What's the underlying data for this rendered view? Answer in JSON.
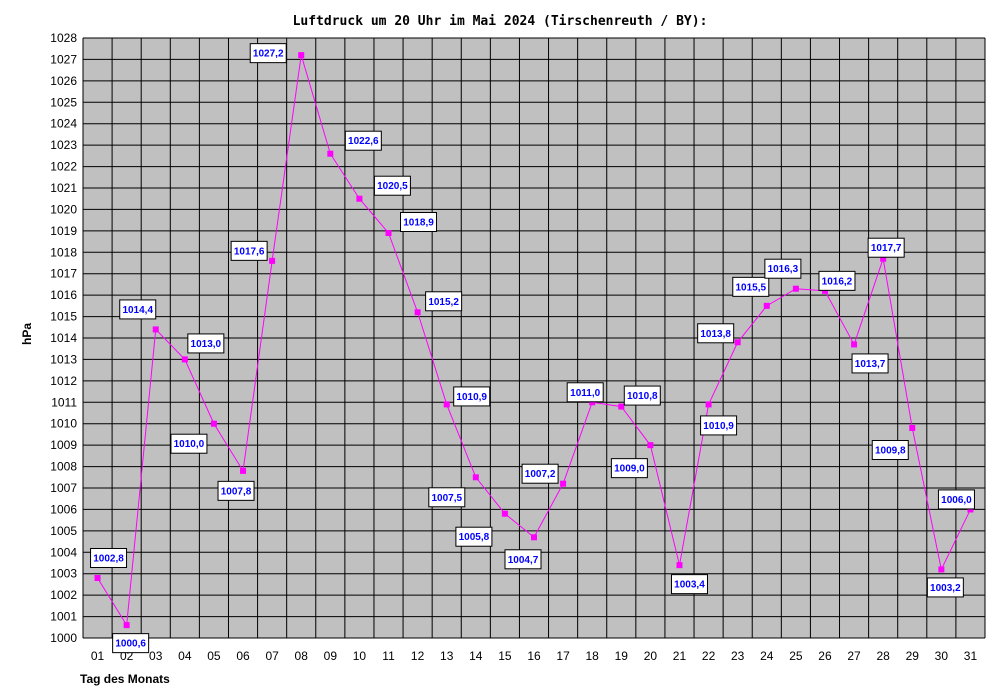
{
  "chart_data": {
    "type": "line",
    "title": "Luftdruck um 20 Uhr im Mai 2024 (Tirschenreuth / BY):",
    "xlabel": "Tag des Monats",
    "ylabel": "hPa",
    "ylim": [
      1000,
      1028
    ],
    "categories": [
      "01",
      "02",
      "03",
      "04",
      "05",
      "06",
      "07",
      "08",
      "09",
      "10",
      "11",
      "12",
      "13",
      "14",
      "15",
      "16",
      "17",
      "18",
      "19",
      "20",
      "21",
      "22",
      "23",
      "24",
      "25",
      "26",
      "27",
      "28",
      "29",
      "30",
      "31"
    ],
    "series": [
      {
        "values": [
          1002.8,
          1000.6,
          1014.4,
          1013.0,
          1010.0,
          1007.8,
          1017.6,
          1027.2,
          1022.6,
          1020.5,
          1018.9,
          1015.2,
          1010.9,
          1007.5,
          1005.8,
          1004.7,
          1007.2,
          1011.0,
          1010.8,
          1009.0,
          1003.4,
          1010.9,
          1013.8,
          1015.5,
          1016.3,
          1016.2,
          1013.7,
          1017.7,
          1009.8,
          1003.2,
          1006.0
        ],
        "labels": [
          "1002,8",
          "1000,6",
          "1014,4",
          "1013,0",
          "1010,0",
          "1007,8",
          "1017,6",
          "1027,2",
          "1022,6",
          "1020,5",
          "1018,9",
          "1015,2",
          "1010,9",
          "1007,5",
          "1005,8",
          "1004,7",
          "1007,2",
          "1011,0",
          "1010,8",
          "1009,0",
          "1003,4",
          "1010,9",
          "1013,8",
          "1015,5",
          "1016,3",
          "1016,2",
          "1013,7",
          "1017,7",
          "1009,8",
          "1003,2",
          "1006,0"
        ],
        "color": "#ff00ff"
      }
    ],
    "grid": true,
    "plot_background": "#c0c0c0",
    "data_label_color": "#0000ff"
  }
}
